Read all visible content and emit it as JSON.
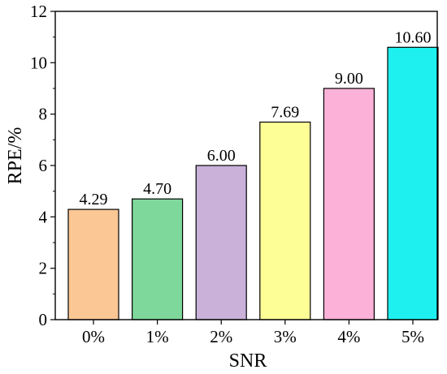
{
  "chart_data": {
    "type": "bar",
    "title": "",
    "xlabel": "SNR",
    "ylabel": "RPE/%",
    "categories": [
      "0%",
      "1%",
      "2%",
      "3%",
      "4%",
      "5%"
    ],
    "values": [
      4.29,
      4.7,
      6.0,
      7.69,
      9.0,
      10.6
    ],
    "value_labels": [
      "4.29",
      "4.70",
      "6.00",
      "7.69",
      "9.00",
      "10.60"
    ],
    "bar_colors": [
      "#FBC795",
      "#7FD89B",
      "#C9B1DA",
      "#FEFE96",
      "#FBB1D8",
      "#1EF0F0"
    ],
    "ylim": [
      0,
      12
    ],
    "yticks": [
      0,
      2,
      4,
      6,
      8,
      10,
      12
    ],
    "ytick_labels": [
      "0",
      "2",
      "4",
      "6",
      "8",
      "10",
      "12"
    ],
    "grid": false,
    "legend": "none"
  }
}
